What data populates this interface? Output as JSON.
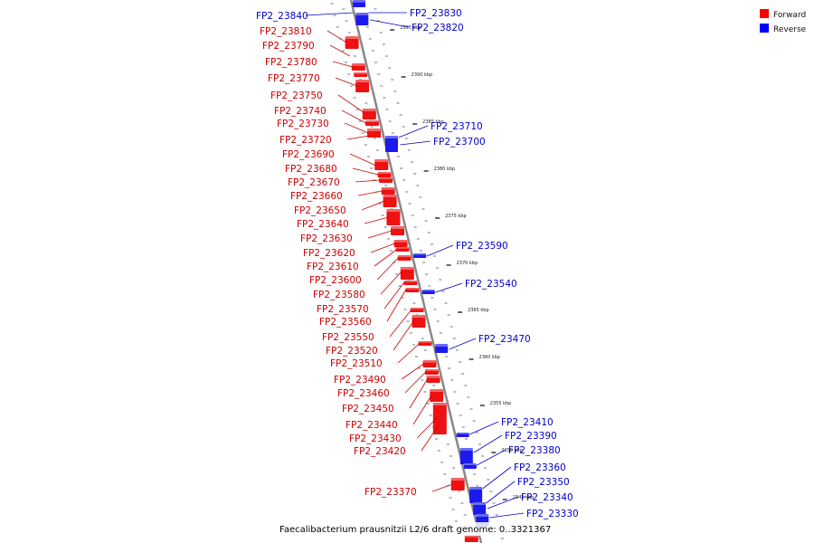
{
  "caption": "Faecalibacterium prausnitzii L2/6 draft genome: 0..3321367",
  "legend": [
    {
      "label": "Forward",
      "color": "#ff0000"
    },
    {
      "label": "Reverse",
      "color": "#0000ff"
    }
  ],
  "colors": {
    "forward": "#ee1111",
    "reverse": "#1a1aee",
    "forward_label": "#cc0000",
    "reverse_label": "#0000cc",
    "axis": "#888888"
  },
  "ticks": [
    {
      "kbp": 2395,
      "label": "2395 kbp"
    },
    {
      "kbp": 2390,
      "label": "2390 kbp"
    },
    {
      "kbp": 2385,
      "label": "2385 kbp"
    },
    {
      "kbp": 2380,
      "label": "2380 kbp"
    },
    {
      "kbp": 2375,
      "label": "2375 kbp"
    },
    {
      "kbp": 2370,
      "label": "2370 kbp"
    },
    {
      "kbp": 2365,
      "label": "2365 kbp"
    },
    {
      "kbp": 2360,
      "label": "2360 kbp"
    },
    {
      "kbp": 2355,
      "label": "2355 kbp"
    },
    {
      "kbp": 2350,
      "label": "2350 kbp"
    },
    {
      "kbp": 2345,
      "label": "2345 kbp"
    }
  ],
  "forward_genes": [
    "FP2_23810",
    "FP2_23790",
    "FP2_23780",
    "FP2_23770",
    "FP2_23750",
    "FP2_23740",
    "FP2_23730",
    "FP2_23720",
    "FP2_23690",
    "FP2_23680",
    "FP2_23670",
    "FP2_23660",
    "FP2_23650",
    "FP2_23640",
    "FP2_23630",
    "FP2_23620",
    "FP2_23610",
    "FP2_23600",
    "FP2_23580",
    "FP2_23570",
    "FP2_23560",
    "FP2_23550",
    "FP2_23520",
    "FP2_23510",
    "FP2_23490",
    "FP2_23460",
    "FP2_23450",
    "FP2_23440",
    "FP2_23430",
    "FP2_23420",
    "FP2_23370"
  ],
  "reverse_genes": [
    "FP2_23840",
    "FP2_23830",
    "FP2_23820",
    "FP2_23710",
    "FP2_23700",
    "FP2_23590",
    "FP2_23540",
    "FP2_23470",
    "FP2_23410",
    "FP2_23390",
    "FP2_23380",
    "FP2_23360",
    "FP2_23350",
    "FP2_23340",
    "FP2_23330"
  ]
}
